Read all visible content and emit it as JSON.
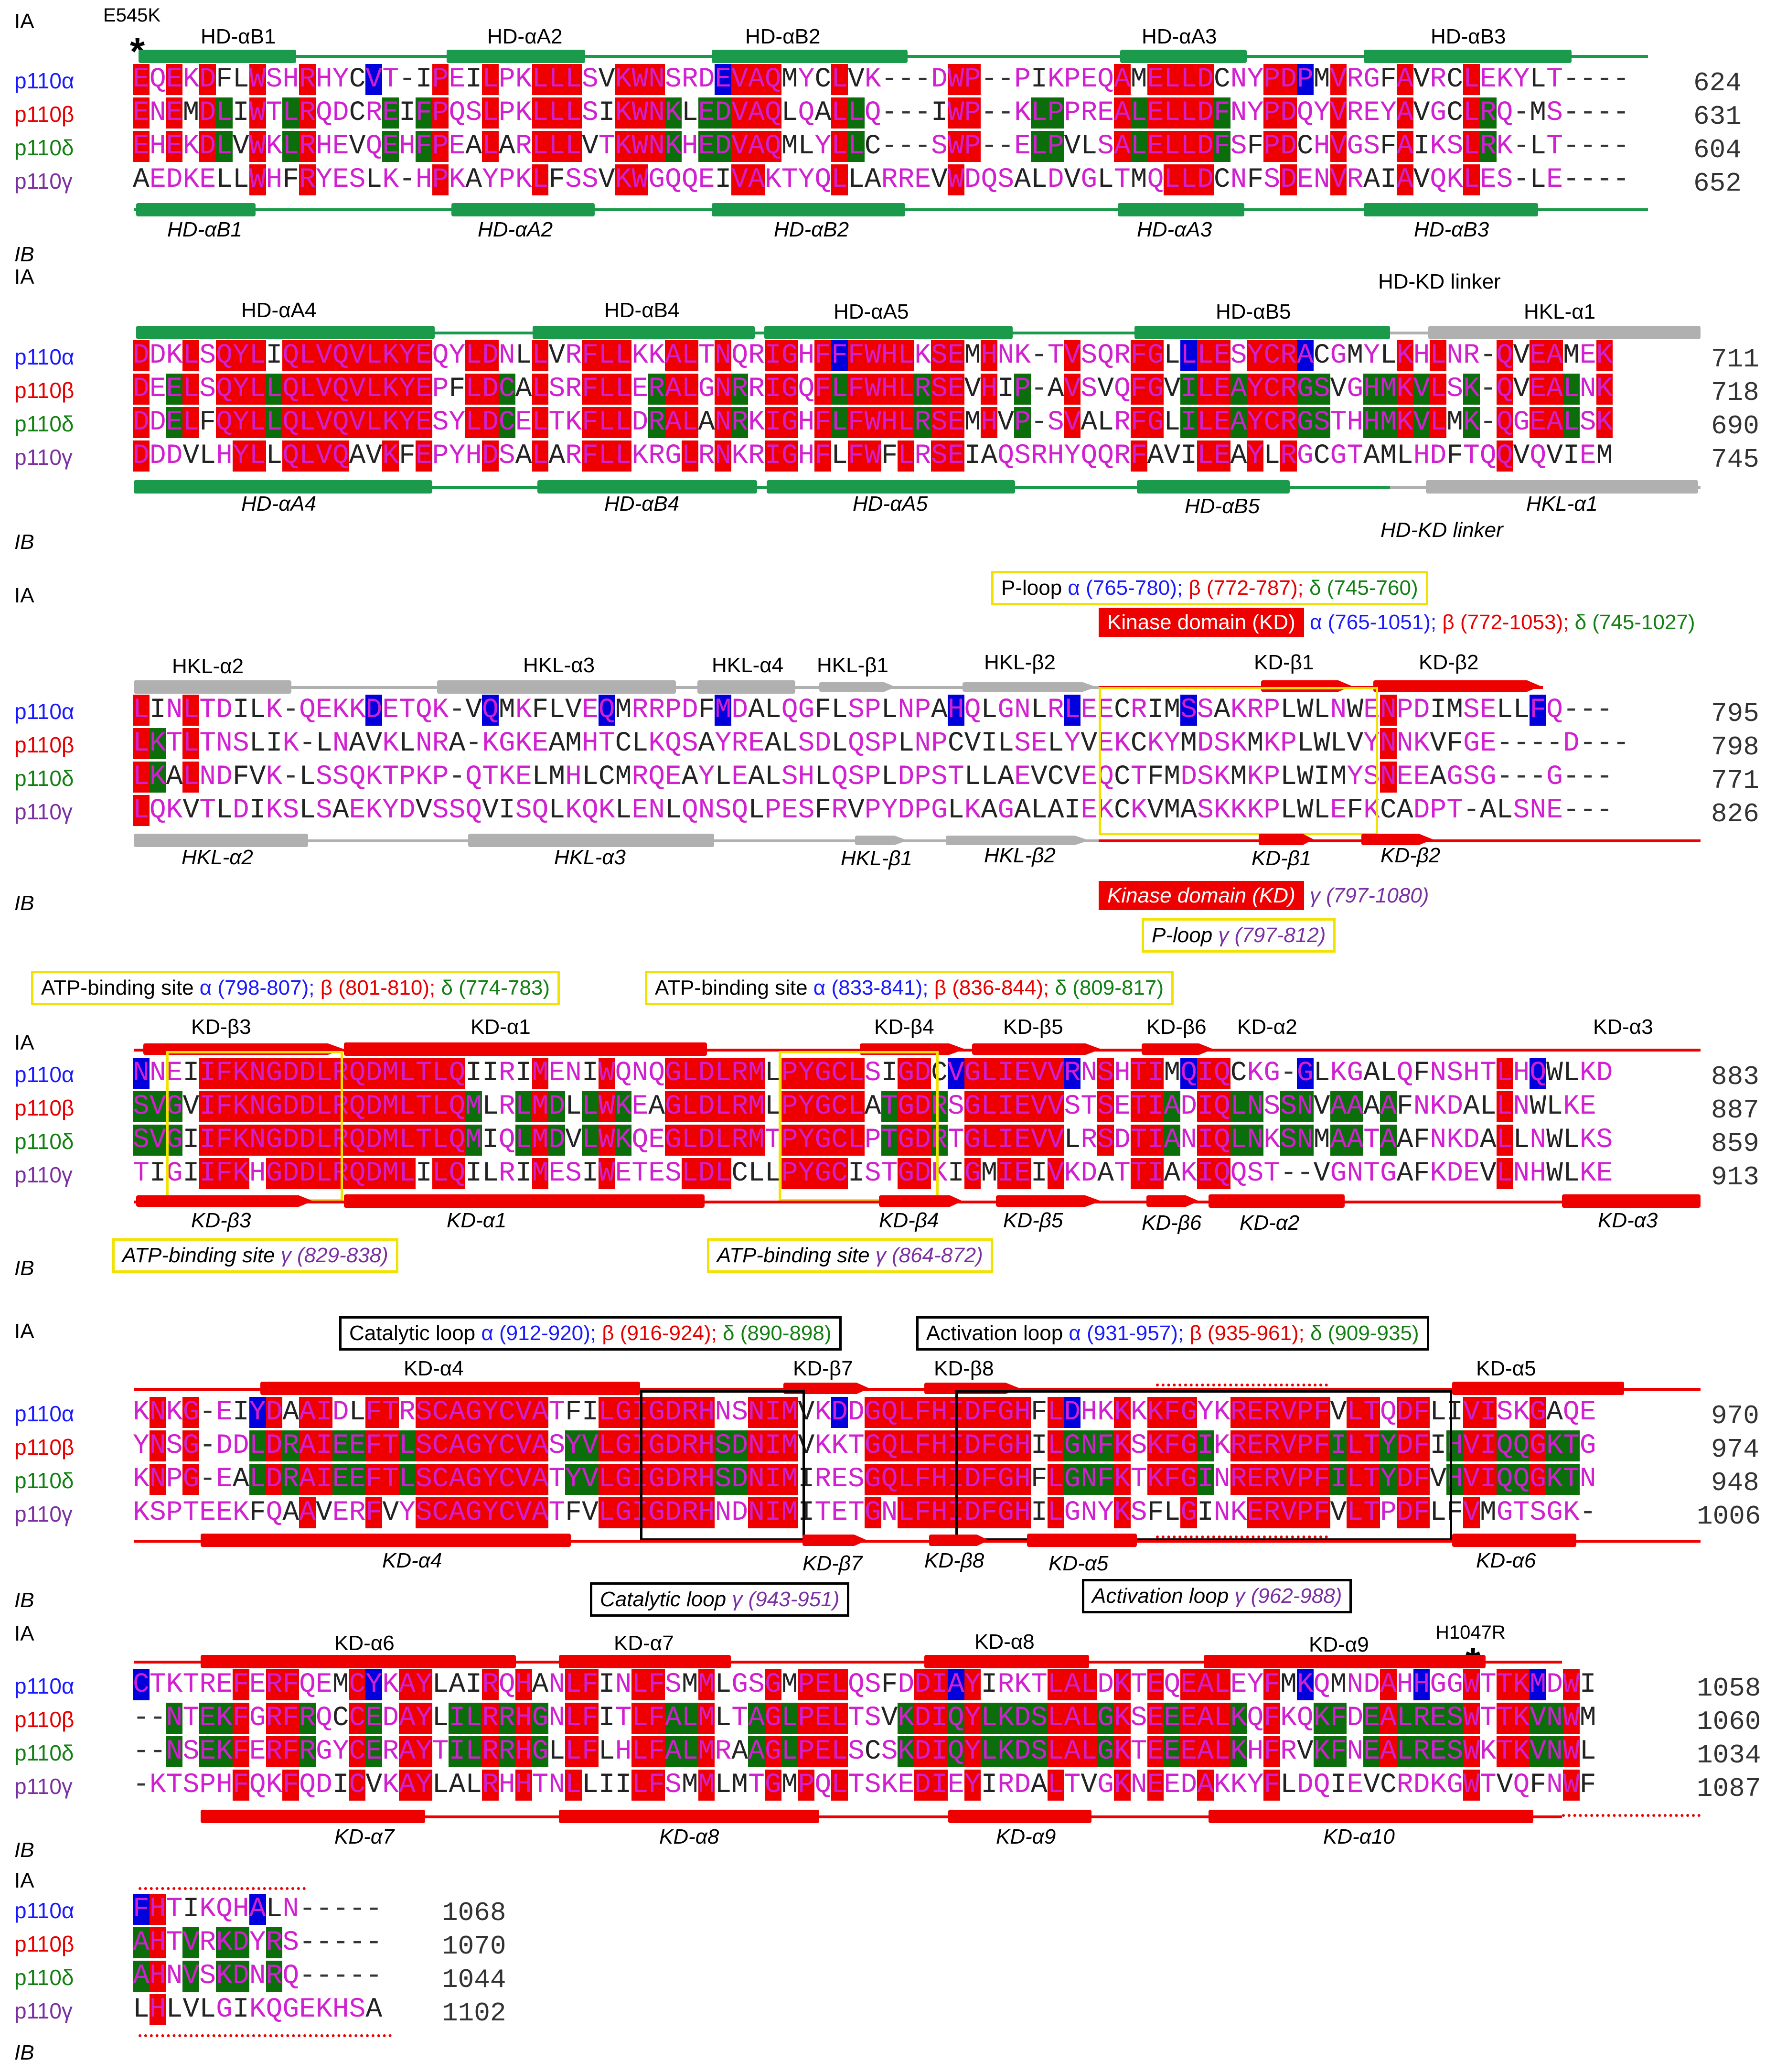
{
  "colors": {
    "alpha": "#1a1aff",
    "beta": "#e60000",
    "delta": "#128012",
    "gamma": "#7a30a0",
    "identical": "#ee0000",
    "similar": "#0b6e0b",
    "blue_block": "#0000dd",
    "magenta": "#d020d0",
    "hd_element": "#1a9a4a",
    "hkl_element": "#b0b0b0",
    "kd_element": "#ee0000"
  },
  "track_labels": {
    "top": "IA",
    "bottom": "IB"
  },
  "mutations": {
    "e545k": "E545K",
    "h1047r": "H1047R"
  },
  "blocks": [
    {
      "id": "b1",
      "rows": [
        {
          "name": "p110α",
          "color": "alpha",
          "seq": "EQEKDFLWSHRHYCVT-IPEILPKLLLSVKWNSRDEVAQMYCLVK---DWP--PIKPEQAMELLDCNYPDPMVRGFAVRCLEKYLT----",
          "end": "624"
        },
        {
          "name": "p110β",
          "color": "beta",
          "seq": "ENEMDLIWTLRQDCREIFPQSLPKLLLSIKWNKLEDVAQLQALLQ---IWP--KLPPREALELLDFNYPDQYVREYAVGCLRQ-MS----",
          "end": "631"
        },
        {
          "name": "p110δ",
          "color": "delta",
          "seq": "EHEKDLVWKLRHEVQEHFPEALARLLLVTKWNKHEDVAQMLYLLC---SWP--ELPVLSALELLDFSFPDCHVGSFAIKSLRK-LT----",
          "end": "604"
        },
        {
          "name": "p110γ",
          "color": "gamma",
          "seq": "AEDKELLWHFRYESLK-HPKAYPKLFSSVKWGQQEIVAKTYQLLARREVWDQSALDVGLTMQLLDCNFSDENVRAIAVQKLES-LE----",
          "end": "652"
        }
      ],
      "top_elements": [
        "HD-αB1",
        "HD-αA2",
        "HD-αB2",
        "HD-αA3",
        "HD-αB3"
      ],
      "bottom_elements": [
        "HD-αB1",
        "HD-αA2",
        "HD-αB2",
        "HD-αA3",
        "HD-αB3"
      ]
    },
    {
      "id": "b2",
      "rows": [
        {
          "name": "p110α",
          "color": "alpha",
          "seq": "DDKLSQYLIQLVQVLKYEQYLDNLLVRFLLKKALTNQRIGHFFFWHLKSEMHNK-TVSQRFGLLLESYCRACGMYLKHLNR-QVEAMEK",
          "end": "711"
        },
        {
          "name": "p110β",
          "color": "beta",
          "seq": "DEELSQYLLQLVQVLKYEPFLDCALSRFLLERALGNRRIGQFLFWHLRSEVHIP-AVSVQFGVILEAYCRGSVGHMKVLSK-QVEALNK",
          "end": "718"
        },
        {
          "name": "p110δ",
          "color": "delta",
          "seq": "DDELFQYLLQLVQVLKYESYLDCELTKFLLDRALANRKIGHFLFWHLRSEMHVP-SVALRFGLILEAYCRGSTHHMKVLMK-QGEALSK",
          "end": "690"
        },
        {
          "name": "p110γ",
          "color": "gamma",
          "seq": "DDDVLHYLLQLVQAVKFEPYHDSALARFLLKRGLRNKRIGHFLFWFLRSEIAQSRHYQQRFAVILEAYLRGCGTAMLHDFTQQVQVIEM",
          "end": "745"
        }
      ],
      "top_elements": [
        "HD-αA4",
        "HD-αB4",
        "HD-αA5",
        "HD-αB5",
        "HKL-α1"
      ],
      "bottom_elements": [
        "HD-αA4",
        "HD-αB4",
        "HD-αA5",
        "HD-αB5",
        "HKL-α1"
      ],
      "linker": "HD-KD linker"
    },
    {
      "id": "b3",
      "rows": [
        {
          "name": "p110α",
          "color": "alpha",
          "seq": "LINLTDILK-QEKKDETQK-VQMKFLVEQMRRPDFMDALQGFLSPLNPAHQLGNLRLEECRIMSSAKRPLWLNWENPDIMSELLFQ---",
          "end": "795"
        },
        {
          "name": "p110β",
          "color": "beta",
          "seq": "LKTLTNSLIK-LNAVKLNRA-KGKEAMHTCLKQSAYREALSDLQSPLNPCVILSELYVEKCKYMDSKMKPLWLVYNNKVFGE----D---",
          "end": "798"
        },
        {
          "name": "p110δ",
          "color": "delta",
          "seq": "LKALNDFVK-LSSQKTPKP-QTKELMHLCMRQEAYLEALSHLQSPLDPSTLLAEVCVEQCTFMDSKMKPLWIMYSNEEAGSG---G---",
          "end": "771"
        },
        {
          "name": "p110γ",
          "color": "gamma",
          "seq": "LQKVTLDIKSLSAEKYDVSSQVISQLKQKLENLQNSQLPESFRVPYDPGLKAGALAIEKCKVMASKKKPLWLEFKCADPT-ALSNE---",
          "end": "826"
        }
      ],
      "top_elements": [
        "HKL-α2",
        "HKL-α3",
        "HKL-α4",
        "HKL-β1",
        "HKL-β2",
        "KD-β1",
        "KD-β2"
      ],
      "bottom_elements": [
        "HKL-α2",
        "HKL-α3",
        "HKL-β1",
        "HKL-β2",
        "KD-β1",
        "KD-β2"
      ],
      "ploop_top": {
        "a": "P-loop ",
        "alpha": "α (765-780); ",
        "beta": "β (772-787); ",
        "delta": "δ (745-760)"
      },
      "kd_top": {
        "label": "Kinase domain (KD)",
        "alpha": " α (765-1051); ",
        "beta": "β (772-1053); ",
        "delta": "δ (745-1027)"
      },
      "kd_bottom": {
        "label": "Kinase domain (KD)",
        "gamma": " γ (797-1080)"
      },
      "ploop_bottom": {
        "a": "P-loop ",
        "gamma": "γ (797-812)"
      }
    },
    {
      "id": "b4",
      "rows": [
        {
          "name": "p110α",
          "color": "alpha",
          "seq": "NNEIIFKNGDDLRQDMLTLQIIRIMENIWQNQGLDLRMLPYGCLSIGDCVGLIEVVRNSHTIMQIQCKG-GLKGALQFNSHTLHQWLKD",
          "end": "883"
        },
        {
          "name": "p110β",
          "color": "beta",
          "seq": "SVGVIFKNGDDLRQDMLTLQMLRLMDLLWKEAGLDLRMLPYGCLATGDRSGLIEVVSTSETIADIQLNSSNVAAAAFNKDALLNWLKE",
          "end": "887"
        },
        {
          "name": "p110δ",
          "color": "delta",
          "seq": "SVGIIFKNGDDLRQDMLTLQMIQLMDVLWKQEGLDLRMTPYGCLPTGDRTGLIEVVLRSDTIANIQLNKSNMAATAAFNKDALLNWLKS",
          "end": "859"
        },
        {
          "name": "p110γ",
          "color": "gamma",
          "seq": "TIGIIFKHGDDLRQDMLILQILRIMESIWETESLDLCLLPYGCISTGDKIGMIEIVKDATTIAKIQQST--VGNTGAFKDEVLNHWLKE",
          "end": "913"
        }
      ],
      "top_elements": [
        "KD-β3",
        "KD-α1",
        "KD-β4",
        "KD-β5",
        "KD-β6",
        "KD-α2",
        "KD-α3"
      ],
      "bottom_elements": [
        "KD-β3",
        "KD-α1",
        "KD-β4",
        "KD-β5",
        "KD-β6",
        "KD-α2",
        "KD-α3"
      ],
      "atp1_top": {
        "a": "ATP-binding site ",
        "alpha": "α (798-807); ",
        "beta": "β (801-810); ",
        "delta": "δ (774-783)"
      },
      "atp2_top": {
        "a": "ATP-binding site ",
        "alpha": "α (833-841); ",
        "beta": "β (836-844); ",
        "delta": "δ (809-817)"
      },
      "atp1_bottom": {
        "a": "ATP-binding site ",
        "gamma": "γ (829-838)"
      },
      "atp2_bottom": {
        "a": "ATP-binding site ",
        "gamma": "γ (864-872)"
      }
    },
    {
      "id": "b5",
      "rows": [
        {
          "name": "p110α",
          "color": "alpha",
          "seq": "KNKG-EIYDAAIDLFTRSCAGYCVATFILGIGDRHNSNIMVKDDGQLFHIDFGHFLDHKKKKFGYKRERVPFVLTQDFLIVISKGAQE",
          "end": "970"
        },
        {
          "name": "p110β",
          "color": "beta",
          "seq": "YNSG-DDLDRAIEEFTLSCAGYCVASYVLGIGDRHSDNIMVKKTGQLFHIDFGHILGNFKSKFGIKRERVPFILTYDFIHVIQQGKTG",
          "end": "974"
        },
        {
          "name": "p110δ",
          "color": "delta",
          "seq": "KNPG-EALDRAIEEFTLSCAGYCVATYVLGIGDRHSDNIMIRESGQLFHIDFGHFLGNFKTKFGINRERVPFILTYDFVHVIQQGKTN",
          "end": "948"
        },
        {
          "name": "p110γ",
          "color": "gamma",
          "seq": "KSPTEEKFQAAVERFVYSCAGYCVATFVLGIGDRHNDNIMITETGNLFHIDFGHILGNYKSFLGINKERVPFVLTPDFLFVMGTSGK-",
          "end": "1006"
        }
      ],
      "top_elements": [
        "KD-α4",
        "KD-β7",
        "KD-β8",
        "KD-α5"
      ],
      "bottom_elements": [
        "KD-α4",
        "KD-β7",
        "KD-β8",
        "KD-α5",
        "KD-α6"
      ],
      "cat_top": {
        "a": "Catalytic loop ",
        "alpha": "α (912-920); ",
        "beta": "β (916-924); ",
        "delta": "δ (890-898)"
      },
      "act_top": {
        "a": "Activation loop ",
        "alpha": "α (931-957); ",
        "beta": "β (935-961); ",
        "delta": "δ (909-935)"
      },
      "cat_bottom": {
        "a": "Catalytic loop ",
        "gamma": "γ (943-951)"
      },
      "act_bottom": {
        "a": "Activation loop ",
        "gamma": "γ (962-988)"
      }
    },
    {
      "id": "b6",
      "rows": [
        {
          "name": "p110α",
          "color": "alpha",
          "seq": "CTKTREFERFQEMCYKAYLAIRQHANLFINLFSMMLGSGMPELQSFDDIAYIRKTLALDKTEQEALEYFMKQMNDAHHGGWTTKMDWI",
          "end": "1058"
        },
        {
          "name": "p110β",
          "color": "beta",
          "seq": "--NTEKFGRFRQCCEDAYLILRRHGNLFITLFALMLTAGLPELTSVKDIQYLKDSLALGKSEEEALKQFKQKFDEALRESWTTKVNWM",
          "end": "1060"
        },
        {
          "name": "p110δ",
          "color": "delta",
          "seq": "--NSEKFERFRGYCERAYTILRRHGLLFLHLFALMRAAGLPELSCSKDIQYLKDSLALGKTEEEALKHFRVKFNEALRESWKTKVNWL",
          "end": "1034"
        },
        {
          "name": "p110γ",
          "color": "gamma",
          "seq": "-KTSPHFQKFQDICVKAYLALRHHTNLLIILFSMMLMTGMPQLTSKEDIEYIRDALTVGKNEEDAKKYFLDQIEVCRDKGWTVQFNWF",
          "end": "1087"
        }
      ],
      "top_elements": [
        "KD-α6",
        "KD-α7",
        "KD-α8",
        "KD-α9"
      ],
      "bottom_elements": [
        "KD-α7",
        "KD-α8",
        "KD-α9",
        "KD-α10"
      ]
    },
    {
      "id": "b7",
      "rows": [
        {
          "name": "p110α",
          "color": "alpha",
          "seq": "FHTIKQHALN-----",
          "end": "1068"
        },
        {
          "name": "p110β",
          "color": "beta",
          "seq": "AHTVRKDYRS-----",
          "end": "1070"
        },
        {
          "name": "p110δ",
          "color": "delta",
          "seq": "AHNVSKDNRQ-----",
          "end": "1044"
        },
        {
          "name": "p110γ",
          "color": "gamma",
          "seq": "LHLVLGIKQGEKHSA",
          "end": "1102"
        }
      ]
    }
  ]
}
